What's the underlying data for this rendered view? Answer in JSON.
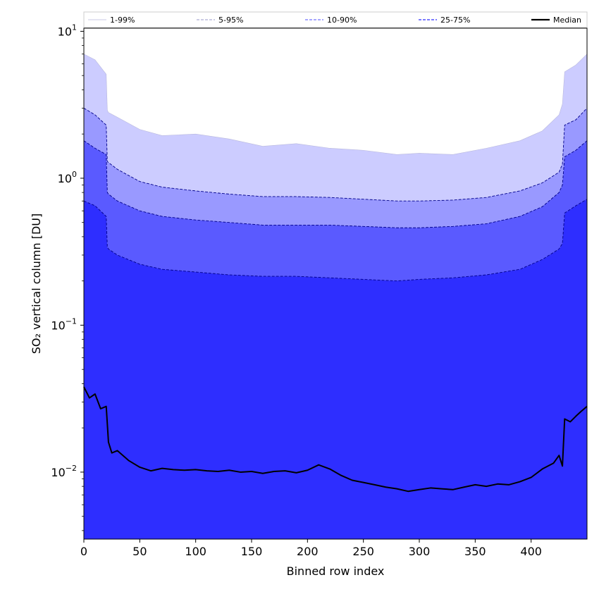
{
  "chart_data": {
    "type": "area",
    "title": "",
    "xlabel": "Binned row index",
    "ylabel": "SO₂ vertical column [DU]",
    "xlim": [
      0,
      450
    ],
    "ylim": [
      0.0035,
      10.5
    ],
    "yscale": "log",
    "x_ticks": [
      0,
      50,
      100,
      150,
      200,
      250,
      300,
      350,
      400
    ],
    "y_ticks": [
      {
        "value": 0.01,
        "base": "10",
        "exp": "−2"
      },
      {
        "value": 0.1,
        "base": "10",
        "exp": "−1"
      },
      {
        "value": 1,
        "base": "10",
        "exp": "0"
      },
      {
        "value": 10,
        "base": "10",
        "exp": "1"
      }
    ],
    "legend_position": "top",
    "x": [
      0,
      10,
      20,
      21,
      22,
      30,
      50,
      70,
      100,
      130,
      160,
      190,
      220,
      250,
      280,
      300,
      330,
      360,
      390,
      410,
      425,
      428,
      430,
      440,
      450
    ],
    "series": [
      {
        "name": "1-99%",
        "fill": "#ccccff",
        "line": "#b9b9dd",
        "upper": [
          7.0,
          6.4,
          5.1,
          2.9,
          2.8,
          2.6,
          2.15,
          1.95,
          2.0,
          1.85,
          1.65,
          1.72,
          1.6,
          1.55,
          1.45,
          1.48,
          1.45,
          1.6,
          1.8,
          2.1,
          2.7,
          3.2,
          5.3,
          5.9,
          7.0
        ],
        "lower": [
          3.0,
          2.7,
          2.3,
          1.3,
          1.28,
          1.15,
          0.95,
          0.87,
          0.82,
          0.78,
          0.75,
          0.75,
          0.74,
          0.72,
          0.7,
          0.7,
          0.71,
          0.74,
          0.82,
          0.93,
          1.1,
          1.25,
          2.3,
          2.5,
          3.0
        ]
      },
      {
        "name": "5-95%",
        "fill": "#9999ff",
        "line": "#00008b",
        "upper": [
          3.0,
          2.7,
          2.3,
          1.3,
          1.28,
          1.15,
          0.95,
          0.87,
          0.82,
          0.78,
          0.75,
          0.75,
          0.74,
          0.72,
          0.7,
          0.7,
          0.71,
          0.74,
          0.82,
          0.93,
          1.1,
          1.25,
          2.3,
          2.5,
          3.0
        ],
        "lower": [
          1.8,
          1.6,
          1.45,
          0.8,
          0.78,
          0.7,
          0.6,
          0.55,
          0.52,
          0.5,
          0.48,
          0.48,
          0.48,
          0.47,
          0.46,
          0.46,
          0.47,
          0.49,
          0.55,
          0.64,
          0.8,
          0.9,
          1.4,
          1.55,
          1.8
        ]
      },
      {
        "name": "10-90%",
        "fill": "#5a5aff",
        "line": "#00008b",
        "upper": [
          1.8,
          1.6,
          1.45,
          0.8,
          0.78,
          0.7,
          0.6,
          0.55,
          0.52,
          0.5,
          0.48,
          0.48,
          0.48,
          0.47,
          0.46,
          0.46,
          0.47,
          0.49,
          0.55,
          0.64,
          0.8,
          0.9,
          1.4,
          1.55,
          1.8
        ],
        "lower": [
          0.7,
          0.65,
          0.55,
          0.34,
          0.33,
          0.3,
          0.26,
          0.24,
          0.23,
          0.22,
          0.215,
          0.215,
          0.21,
          0.205,
          0.2,
          0.205,
          0.21,
          0.22,
          0.24,
          0.28,
          0.33,
          0.36,
          0.58,
          0.65,
          0.72
        ]
      },
      {
        "name": "25-75%",
        "fill": "#2e2eff",
        "line": "#00008b",
        "upper": [
          0.7,
          0.65,
          0.55,
          0.34,
          0.33,
          0.3,
          0.26,
          0.24,
          0.23,
          0.22,
          0.215,
          0.215,
          0.21,
          0.205,
          0.2,
          0.205,
          0.21,
          0.22,
          0.24,
          0.28,
          0.33,
          0.36,
          0.58,
          0.65,
          0.72
        ],
        "lower": [
          0.0035,
          0.0035,
          0.0035,
          0.0035,
          0.0035,
          0.0035,
          0.0035,
          0.0035,
          0.0035,
          0.0035,
          0.0035,
          0.0035,
          0.0035,
          0.0035,
          0.0035,
          0.0035,
          0.0035,
          0.0035,
          0.0035,
          0.0035,
          0.0035,
          0.0035,
          0.0035,
          0.0035,
          0.0035
        ]
      }
    ],
    "median": {
      "name": "Median",
      "x": [
        0,
        5,
        10,
        15,
        20,
        22,
        25,
        30,
        40,
        50,
        60,
        70,
        80,
        90,
        100,
        110,
        120,
        130,
        140,
        150,
        160,
        170,
        180,
        190,
        200,
        210,
        220,
        230,
        240,
        250,
        260,
        270,
        280,
        290,
        300,
        310,
        320,
        330,
        340,
        350,
        360,
        370,
        380,
        390,
        400,
        410,
        420,
        425,
        428,
        430,
        435,
        440,
        445,
        450
      ],
      "y": [
        0.038,
        0.032,
        0.034,
        0.027,
        0.028,
        0.016,
        0.0135,
        0.014,
        0.012,
        0.0108,
        0.0102,
        0.0106,
        0.0104,
        0.0103,
        0.0104,
        0.0102,
        0.0101,
        0.0103,
        0.01,
        0.0101,
        0.0098,
        0.0101,
        0.0102,
        0.0099,
        0.0103,
        0.0112,
        0.0105,
        0.0095,
        0.0088,
        0.0085,
        0.0082,
        0.0079,
        0.0077,
        0.0074,
        0.0076,
        0.0078,
        0.0077,
        0.0076,
        0.0079,
        0.0082,
        0.008,
        0.0083,
        0.0082,
        0.0086,
        0.0092,
        0.0105,
        0.0115,
        0.013,
        0.011,
        0.023,
        0.022,
        0.024,
        0.026,
        0.028
      ]
    }
  }
}
